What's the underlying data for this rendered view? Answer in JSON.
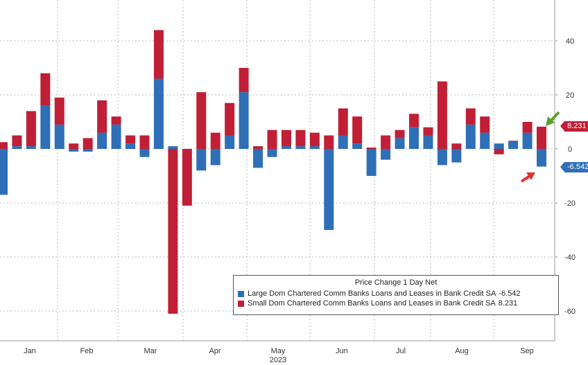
{
  "chart_data": {
    "type": "bar",
    "stacked": true,
    "title": "",
    "xlabel": "",
    "ylabel": "",
    "ylim": [
      -70,
      50
    ],
    "yticks": [
      40,
      20,
      0,
      -20,
      -40,
      -60
    ],
    "grid": true,
    "x_tick_labels": [
      "Jan",
      "Feb",
      "Mar",
      "Apr",
      "May",
      "Jun",
      "Jul",
      "Aug",
      "Sep"
    ],
    "x_year_label": "2023",
    "legend_placement": "bottom-right",
    "legend_title": "Price Change 1 Day Net",
    "series": [
      {
        "name": "Large Dom Chartered Comm Banks Loans and Leases in Bank Credit SA",
        "last_value_label": "-6.542",
        "color": "#2e6fb7",
        "values": [
          -17,
          1,
          1,
          16,
          9,
          -1,
          -1,
          6,
          9,
          2,
          -3,
          26,
          1,
          0,
          -8,
          -6,
          5,
          21,
          -7,
          -3,
          1,
          1,
          1,
          -30,
          5,
          2,
          -10,
          -4,
          4,
          8,
          5,
          -6,
          -5,
          9,
          6,
          2,
          3,
          6,
          -6.542
        ]
      },
      {
        "name": "Small Dom Chartered Comm Banks Loans and Leases in Bank Credit SA",
        "last_value_label": "8.231",
        "color": "#c01f36",
        "values": [
          2.5,
          4,
          13,
          12,
          10,
          2,
          4,
          12,
          3,
          3,
          5,
          18,
          -61,
          -21,
          21,
          6,
          12,
          9,
          1,
          7,
          6,
          6,
          5,
          5,
          10,
          10,
          0.5,
          5,
          3,
          5,
          3,
          25,
          2,
          6,
          6,
          -2,
          0,
          4,
          8.231
        ]
      }
    ],
    "last_value_tags": {
      "small": "8.231",
      "large": "-6.542"
    }
  }
}
